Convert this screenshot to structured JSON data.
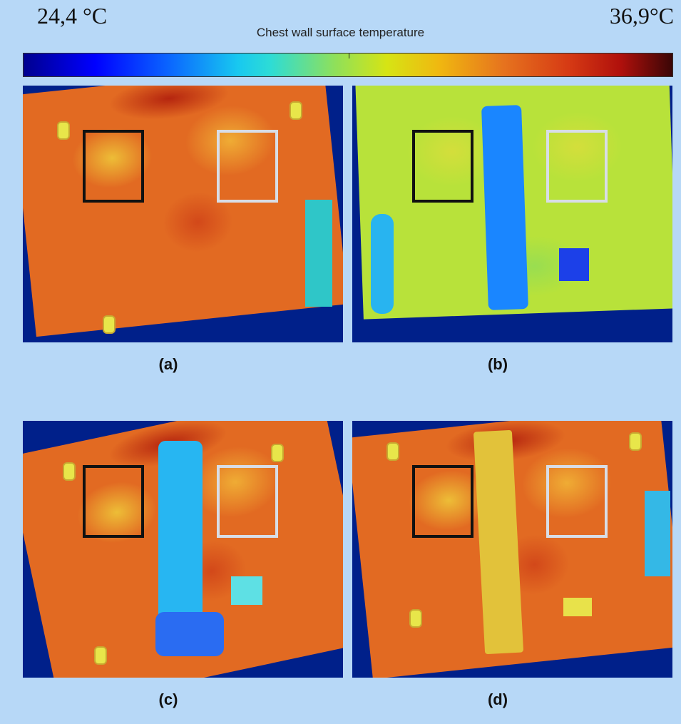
{
  "scale": {
    "min_label": "24,4 °C",
    "max_label": "36,9°C",
    "title": "Chest wall surface temperature"
  },
  "panels": [
    {
      "id": "a",
      "label": "(a)"
    },
    {
      "id": "b",
      "label": "(b)"
    },
    {
      "id": "c",
      "label": "(c)"
    },
    {
      "id": "d",
      "label": "(d)"
    }
  ],
  "colors": {
    "background": "#b7d8f7",
    "roi_dark": "#111111",
    "roi_light": "#d8dde6",
    "frame": "#00208a"
  }
}
